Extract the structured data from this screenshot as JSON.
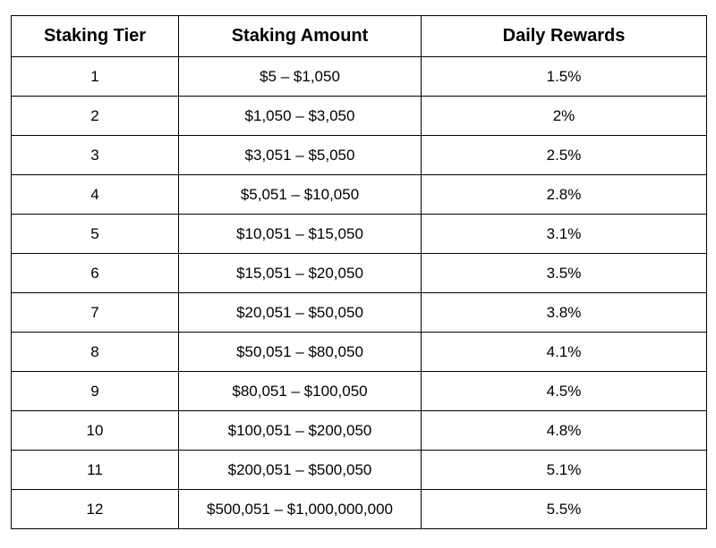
{
  "table": {
    "header": [
      "Staking Tier",
      "Staking Amount",
      "Daily Rewards"
    ],
    "rows": [
      [
        "1",
        "$5 – $1,050",
        "1.5%"
      ],
      [
        "2",
        "$1,050 – $3,050",
        "2%"
      ],
      [
        "3",
        "$3,051 – $5,050",
        "2.5%"
      ],
      [
        "4",
        "$5,051 – $10,050",
        "2.8%"
      ],
      [
        "5",
        "$10,051 – $15,050",
        "3.1%"
      ],
      [
        "6",
        "$15,051 – $20,050",
        "3.5%"
      ],
      [
        "7",
        "$20,051 – $50,050",
        "3.8%"
      ],
      [
        "8",
        "$50,051 – $80,050",
        "4.1%"
      ],
      [
        "9",
        "$80,051 – $100,050",
        "4.5%"
      ],
      [
        "10",
        "$100,051 – $200,050",
        "4.8%"
      ],
      [
        "11",
        "$200,051 – $500,050",
        "5.1%"
      ],
      [
        "12",
        "$500,051 – $1,000,000,000",
        "5.5%"
      ]
    ]
  }
}
